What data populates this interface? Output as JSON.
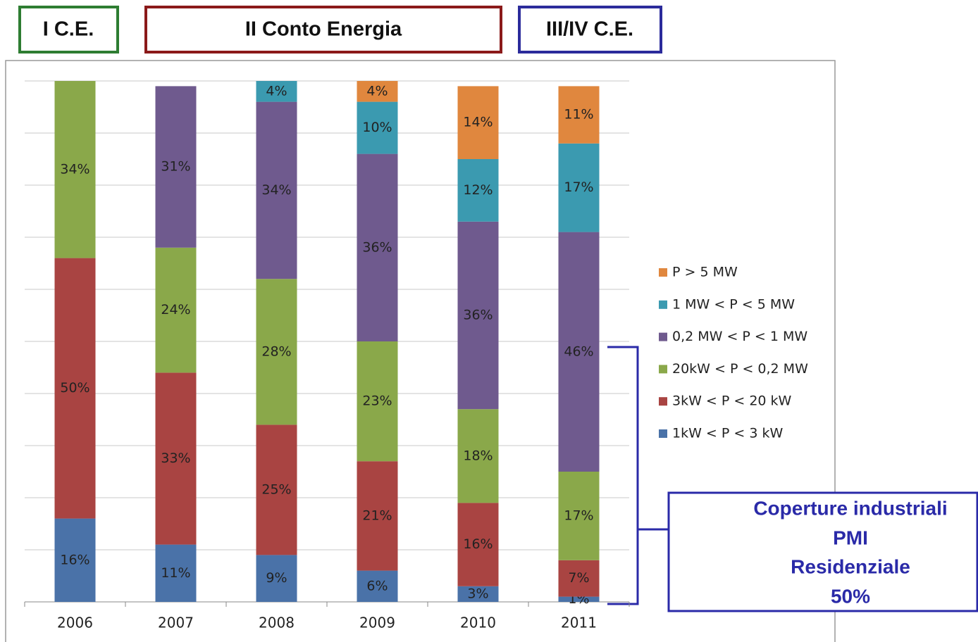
{
  "chart_data": {
    "type": "bar",
    "stacked": true,
    "categories": [
      "2006",
      "2007",
      "2008",
      "2009",
      "2010",
      "2011"
    ],
    "series": [
      {
        "name": "1kW < P < 3 kW",
        "color": "#4a72a8",
        "values": [
          16,
          11,
          9,
          6,
          3,
          1
        ],
        "value_labels": [
          "16%",
          "11%",
          "9%",
          "6%",
          "3%",
          "1%"
        ]
      },
      {
        "name": "3kW < P < 20 kW",
        "color": "#a94442",
        "values": [
          50,
          33,
          25,
          21,
          16,
          7
        ],
        "value_labels": [
          "50%",
          "33%",
          "25%",
          "21%",
          "16%",
          "7%"
        ]
      },
      {
        "name": "20kW < P < 0,2 MW",
        "color": "#8aa84a",
        "values": [
          34,
          24,
          28,
          23,
          18,
          17
        ],
        "value_labels": [
          "34%",
          "24%",
          "28%",
          "23%",
          "18%",
          "17%"
        ]
      },
      {
        "name": "0,2 MW < P < 1 MW",
        "color": "#6f5a8e",
        "values": [
          null,
          31,
          34,
          36,
          36,
          46
        ],
        "value_labels": [
          null,
          "31%",
          "34%",
          "36%",
          "36%",
          "46%"
        ]
      },
      {
        "name": "1 MW < P < 5 MW",
        "color": "#3b9ab0",
        "values": [
          null,
          null,
          4,
          10,
          12,
          17
        ],
        "value_labels": [
          null,
          null,
          "4%",
          "10%",
          "12%",
          "17%"
        ]
      },
      {
        "name": "P > 5 MW",
        "color": "#e0873e",
        "values": [
          null,
          null,
          null,
          4,
          14,
          11
        ],
        "value_labels": [
          null,
          null,
          null,
          "4%",
          "14%",
          "11%"
        ]
      }
    ],
    "ylim": [
      0,
      100
    ],
    "yticks": [
      0,
      10,
      20,
      30,
      40,
      50,
      60,
      70,
      80,
      90,
      100
    ],
    "grid": true,
    "legend": "right",
    "headers": [
      "I C.E.",
      "II Conto Energia",
      "III/IV C.E."
    ],
    "annotation": [
      "Coperture industriali",
      "PMI",
      "Residenziale",
      "50%"
    ]
  }
}
